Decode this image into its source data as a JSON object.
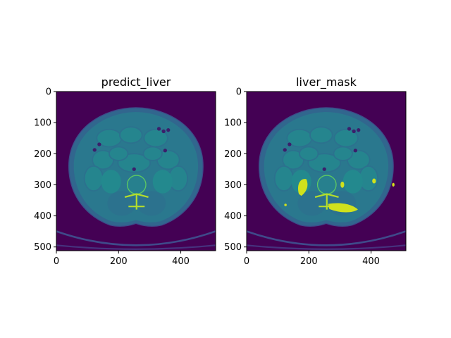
{
  "figure": {
    "colormap": "viridis",
    "colors": {
      "background_dark": "#440154",
      "body": "#2b7f8e",
      "fat": "#2a7b8e",
      "soft_tissue": "#26838e",
      "air": "#3b1f6b",
      "bone": "#b5de2b",
      "mask_highlight": "#d0e11c",
      "outline": "#3f4a8a"
    }
  },
  "panels": [
    {
      "title": "predict_liver",
      "xticks": [
        "0",
        "200",
        "400"
      ],
      "yticks": [
        "0",
        "100",
        "200",
        "300",
        "400",
        "500"
      ],
      "show_mask": false
    },
    {
      "title": "liver_mask",
      "xticks": [
        "0",
        "200",
        "400"
      ],
      "yticks": [
        "0",
        "100",
        "200",
        "300",
        "400",
        "500"
      ],
      "show_mask": true
    }
  ]
}
